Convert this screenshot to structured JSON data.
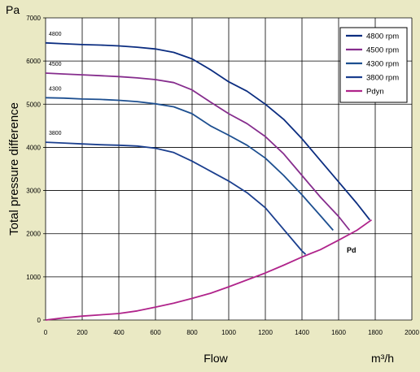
{
  "chart_data": {
    "type": "line",
    "unit_top_left": "Pa",
    "ylabel": "Total pressure difference",
    "xlabel": "Flow",
    "x_unit": "m³/h",
    "xlim": [
      0,
      2000
    ],
    "ylim": [
      0,
      7000
    ],
    "x_ticks": [
      0,
      200,
      400,
      600,
      800,
      1000,
      1200,
      1400,
      1600,
      1800,
      2000
    ],
    "y_ticks": [
      0,
      1000,
      2000,
      3000,
      4000,
      5000,
      6000,
      7000
    ],
    "grid": true,
    "legend_position": "top-right",
    "annotation": "Pd",
    "series": [
      {
        "name": "4800 rpm",
        "curve_label": "4800",
        "color": "#0b2d80",
        "points": [
          [
            0,
            6420
          ],
          [
            100,
            6400
          ],
          [
            200,
            6380
          ],
          [
            300,
            6370
          ],
          [
            400,
            6350
          ],
          [
            500,
            6320
          ],
          [
            600,
            6280
          ],
          [
            700,
            6200
          ],
          [
            800,
            6050
          ],
          [
            900,
            5800
          ],
          [
            1000,
            5520
          ],
          [
            1100,
            5300
          ],
          [
            1200,
            5000
          ],
          [
            1300,
            4650
          ],
          [
            1400,
            4200
          ],
          [
            1500,
            3700
          ],
          [
            1600,
            3200
          ],
          [
            1700,
            2700
          ],
          [
            1770,
            2320
          ]
        ]
      },
      {
        "name": "4500 rpm",
        "curve_label": "4500",
        "color": "#862d8d",
        "points": [
          [
            0,
            5720
          ],
          [
            100,
            5700
          ],
          [
            200,
            5680
          ],
          [
            300,
            5660
          ],
          [
            400,
            5640
          ],
          [
            500,
            5610
          ],
          [
            600,
            5570
          ],
          [
            700,
            5500
          ],
          [
            800,
            5330
          ],
          [
            900,
            5050
          ],
          [
            1000,
            4780
          ],
          [
            1100,
            4550
          ],
          [
            1200,
            4250
          ],
          [
            1300,
            3850
          ],
          [
            1400,
            3350
          ],
          [
            1500,
            2850
          ],
          [
            1600,
            2400
          ],
          [
            1660,
            2080
          ]
        ]
      },
      {
        "name": "4300 rpm",
        "curve_label": "4300",
        "color": "#1d4f90",
        "points": [
          [
            0,
            5150
          ],
          [
            100,
            5140
          ],
          [
            200,
            5120
          ],
          [
            300,
            5110
          ],
          [
            400,
            5090
          ],
          [
            500,
            5060
          ],
          [
            600,
            5010
          ],
          [
            700,
            4940
          ],
          [
            800,
            4780
          ],
          [
            900,
            4500
          ],
          [
            1000,
            4280
          ],
          [
            1100,
            4050
          ],
          [
            1200,
            3750
          ],
          [
            1300,
            3350
          ],
          [
            1400,
            2900
          ],
          [
            1500,
            2420
          ],
          [
            1570,
            2080
          ]
        ]
      },
      {
        "name": "3800 rpm",
        "curve_label": "3800",
        "color": "#1b3f8e",
        "points": [
          [
            0,
            4120
          ],
          [
            100,
            4100
          ],
          [
            200,
            4080
          ],
          [
            300,
            4060
          ],
          [
            400,
            4050
          ],
          [
            500,
            4030
          ],
          [
            600,
            3980
          ],
          [
            700,
            3880
          ],
          [
            800,
            3680
          ],
          [
            900,
            3450
          ],
          [
            1000,
            3220
          ],
          [
            1100,
            2950
          ],
          [
            1200,
            2600
          ],
          [
            1300,
            2100
          ],
          [
            1400,
            1600
          ],
          [
            1420,
            1520
          ]
        ]
      },
      {
        "name": "Pdyn",
        "curve_label": "",
        "color": "#b0248b",
        "points": [
          [
            0,
            0
          ],
          [
            100,
            50
          ],
          [
            200,
            90
          ],
          [
            300,
            120
          ],
          [
            400,
            150
          ],
          [
            500,
            210
          ],
          [
            600,
            300
          ],
          [
            700,
            390
          ],
          [
            800,
            500
          ],
          [
            900,
            620
          ],
          [
            1000,
            770
          ],
          [
            1100,
            930
          ],
          [
            1200,
            1090
          ],
          [
            1300,
            1270
          ],
          [
            1400,
            1460
          ],
          [
            1500,
            1630
          ],
          [
            1600,
            1850
          ],
          [
            1700,
            2080
          ],
          [
            1780,
            2320
          ]
        ]
      }
    ]
  }
}
